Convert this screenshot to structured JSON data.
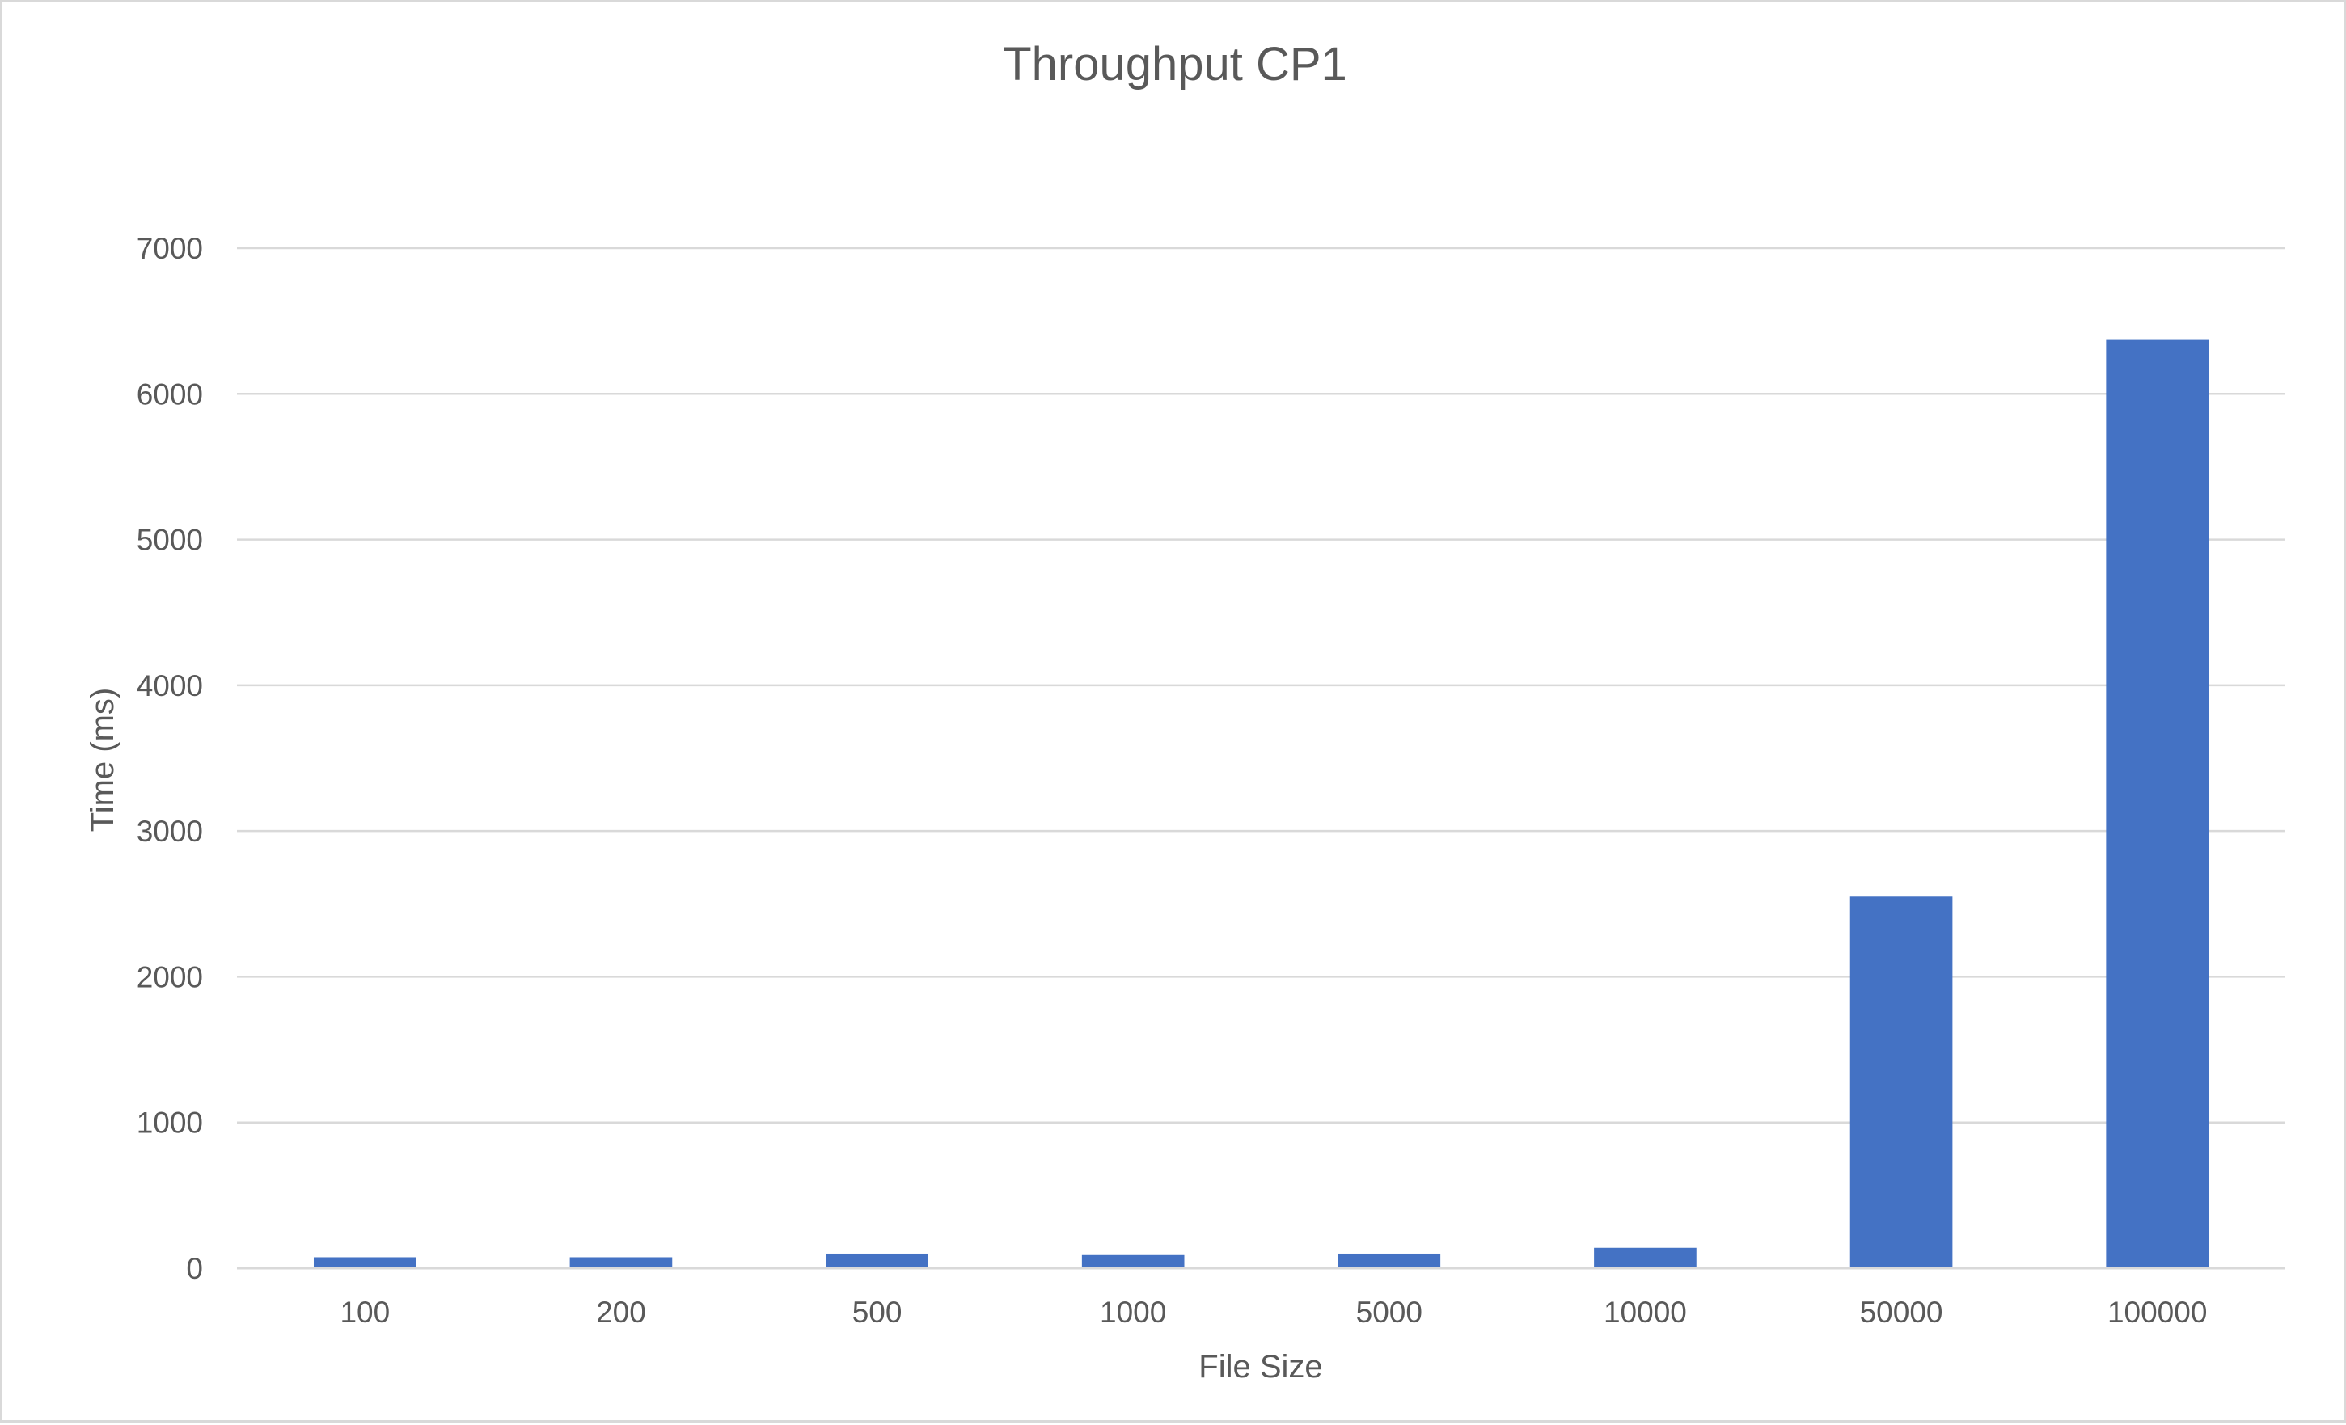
{
  "chart_data": {
    "type": "bar",
    "title": "Throughput CP1",
    "xlabel": "File Size",
    "ylabel": "Time (ms)",
    "categories": [
      "100",
      "200",
      "500",
      "1000",
      "5000",
      "10000",
      "50000",
      "100000"
    ],
    "values": [
      75,
      75,
      100,
      90,
      100,
      140,
      2550,
      6370
    ],
    "ylim": [
      0,
      7000
    ],
    "yticks": [
      "0",
      "1000",
      "2000",
      "3000",
      "4000",
      "5000",
      "6000",
      "7000"
    ],
    "grid": true,
    "legend": "none",
    "bar_color": "#4472c4"
  }
}
